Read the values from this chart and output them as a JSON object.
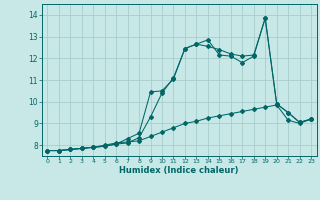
{
  "xlabel": "Humidex (Indice chaleur)",
  "bg_color": "#c8e8e8",
  "grid_color": "#a8cccc",
  "line_color": "#006666",
  "xlim": [
    -0.5,
    23.5
  ],
  "ylim": [
    7.5,
    14.5
  ],
  "yticks": [
    8,
    9,
    10,
    11,
    12,
    13,
    14
  ],
  "xticks": [
    0,
    1,
    2,
    3,
    4,
    5,
    6,
    7,
    8,
    9,
    10,
    11,
    12,
    13,
    14,
    15,
    16,
    17,
    18,
    19,
    20,
    21,
    22,
    23
  ],
  "line1_x": [
    0,
    1,
    2,
    3,
    4,
    5,
    6,
    7,
    8,
    9,
    10,
    11,
    12,
    13,
    14,
    15,
    16,
    17,
    18,
    19,
    20,
    21,
    22,
    23
  ],
  "line1_y": [
    7.75,
    7.75,
    7.8,
    7.85,
    7.9,
    7.95,
    8.05,
    8.1,
    8.35,
    9.3,
    10.4,
    11.1,
    12.45,
    12.65,
    12.85,
    12.15,
    12.1,
    11.8,
    12.1,
    13.85,
    9.9,
    9.5,
    9.05,
    9.2
  ],
  "line2_x": [
    0,
    1,
    2,
    3,
    4,
    5,
    6,
    7,
    8,
    9,
    10,
    11,
    12,
    13,
    14,
    15,
    16,
    17,
    18,
    19,
    20,
    21,
    22,
    23
  ],
  "line2_y": [
    7.75,
    7.75,
    7.8,
    7.85,
    7.9,
    7.95,
    8.05,
    8.3,
    8.55,
    10.45,
    10.5,
    11.05,
    12.45,
    12.65,
    12.55,
    12.4,
    12.2,
    12.1,
    12.15,
    13.85,
    9.9,
    9.5,
    9.05,
    9.2
  ],
  "line3_x": [
    0,
    1,
    2,
    3,
    4,
    5,
    6,
    7,
    8,
    9,
    10,
    11,
    12,
    13,
    14,
    15,
    16,
    17,
    18,
    19,
    20,
    21,
    22,
    23
  ],
  "line3_y": [
    7.75,
    7.75,
    7.8,
    7.85,
    7.9,
    8.0,
    8.1,
    8.15,
    8.2,
    8.4,
    8.6,
    8.8,
    9.0,
    9.1,
    9.25,
    9.35,
    9.45,
    9.55,
    9.65,
    9.75,
    9.85,
    9.15,
    9.0,
    9.2
  ]
}
